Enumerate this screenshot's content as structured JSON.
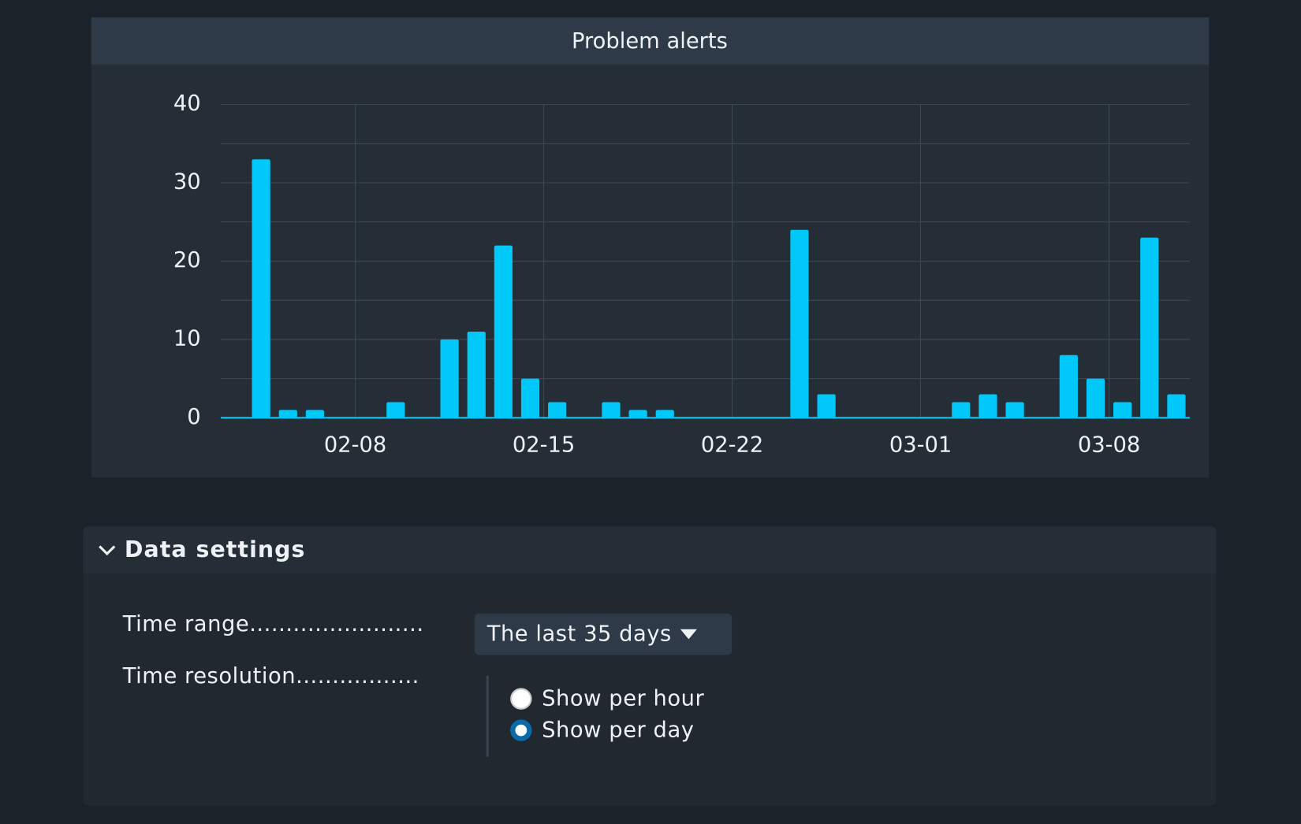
{
  "chart_data": {
    "type": "bar",
    "title": "Problem alerts",
    "x": [
      "02-03",
      "02-04",
      "02-05",
      "02-06",
      "02-07",
      "02-08",
      "02-09",
      "02-10",
      "02-11",
      "02-12",
      "02-13",
      "02-14",
      "02-15",
      "02-16",
      "02-17",
      "02-18",
      "02-19",
      "02-20",
      "02-21",
      "02-22",
      "02-23",
      "02-24",
      "02-25",
      "02-26",
      "02-27",
      "02-28",
      "03-01",
      "03-02",
      "03-03",
      "03-04",
      "03-05",
      "03-06",
      "03-07",
      "03-08",
      "03-09",
      "03-10"
    ],
    "values": [
      0,
      33,
      1,
      1,
      0,
      0,
      2,
      0,
      10,
      11,
      22,
      5,
      2,
      0,
      2,
      1,
      1,
      0,
      0,
      0,
      0,
      24,
      3,
      0,
      0,
      0,
      0,
      2,
      3,
      2,
      0,
      8,
      5,
      2,
      23,
      3
    ],
    "color": "#00c8f8",
    "xticks": [
      "02-08",
      "02-15",
      "02-22",
      "03-01",
      "03-08"
    ],
    "ylim": [
      0,
      40
    ],
    "yticks": [
      0,
      10,
      20,
      30,
      40
    ],
    "minor_yticks": [
      5,
      15,
      25,
      35
    ],
    "grid": true
  },
  "settings": {
    "title": "Data settings",
    "time_range_label": "Time range........................",
    "time_range_value": "The last 35 days",
    "time_resolution_label": "Time resolution.................",
    "options": [
      "Show per hour",
      "Show per day"
    ]
  }
}
